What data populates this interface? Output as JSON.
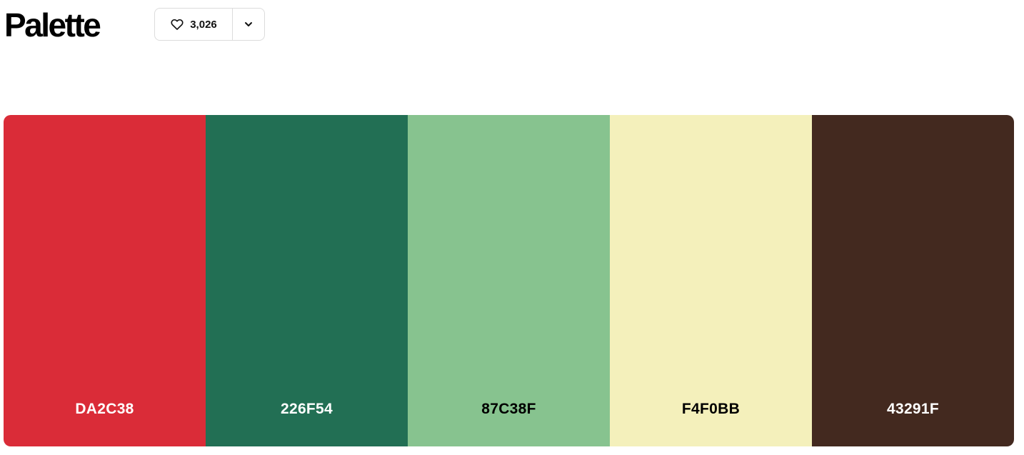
{
  "header": {
    "title": "Palette",
    "likes": {
      "count": "3,026",
      "icon": "heart-icon"
    },
    "menu": {
      "icon": "chevron-down-icon"
    }
  },
  "palette": {
    "swatches": [
      {
        "hex": "DA2C38",
        "color": "#DA2C38",
        "text_color": "#FFFFFF"
      },
      {
        "hex": "226F54",
        "color": "#226F54",
        "text_color": "#FFFFFF"
      },
      {
        "hex": "87C38F",
        "color": "#87C38F",
        "text_color": "#000000"
      },
      {
        "hex": "F4F0BB",
        "color": "#F4F0BB",
        "text_color": "#000000"
      },
      {
        "hex": "43291F",
        "color": "#43291F",
        "text_color": "#FFFFFF"
      }
    ]
  }
}
